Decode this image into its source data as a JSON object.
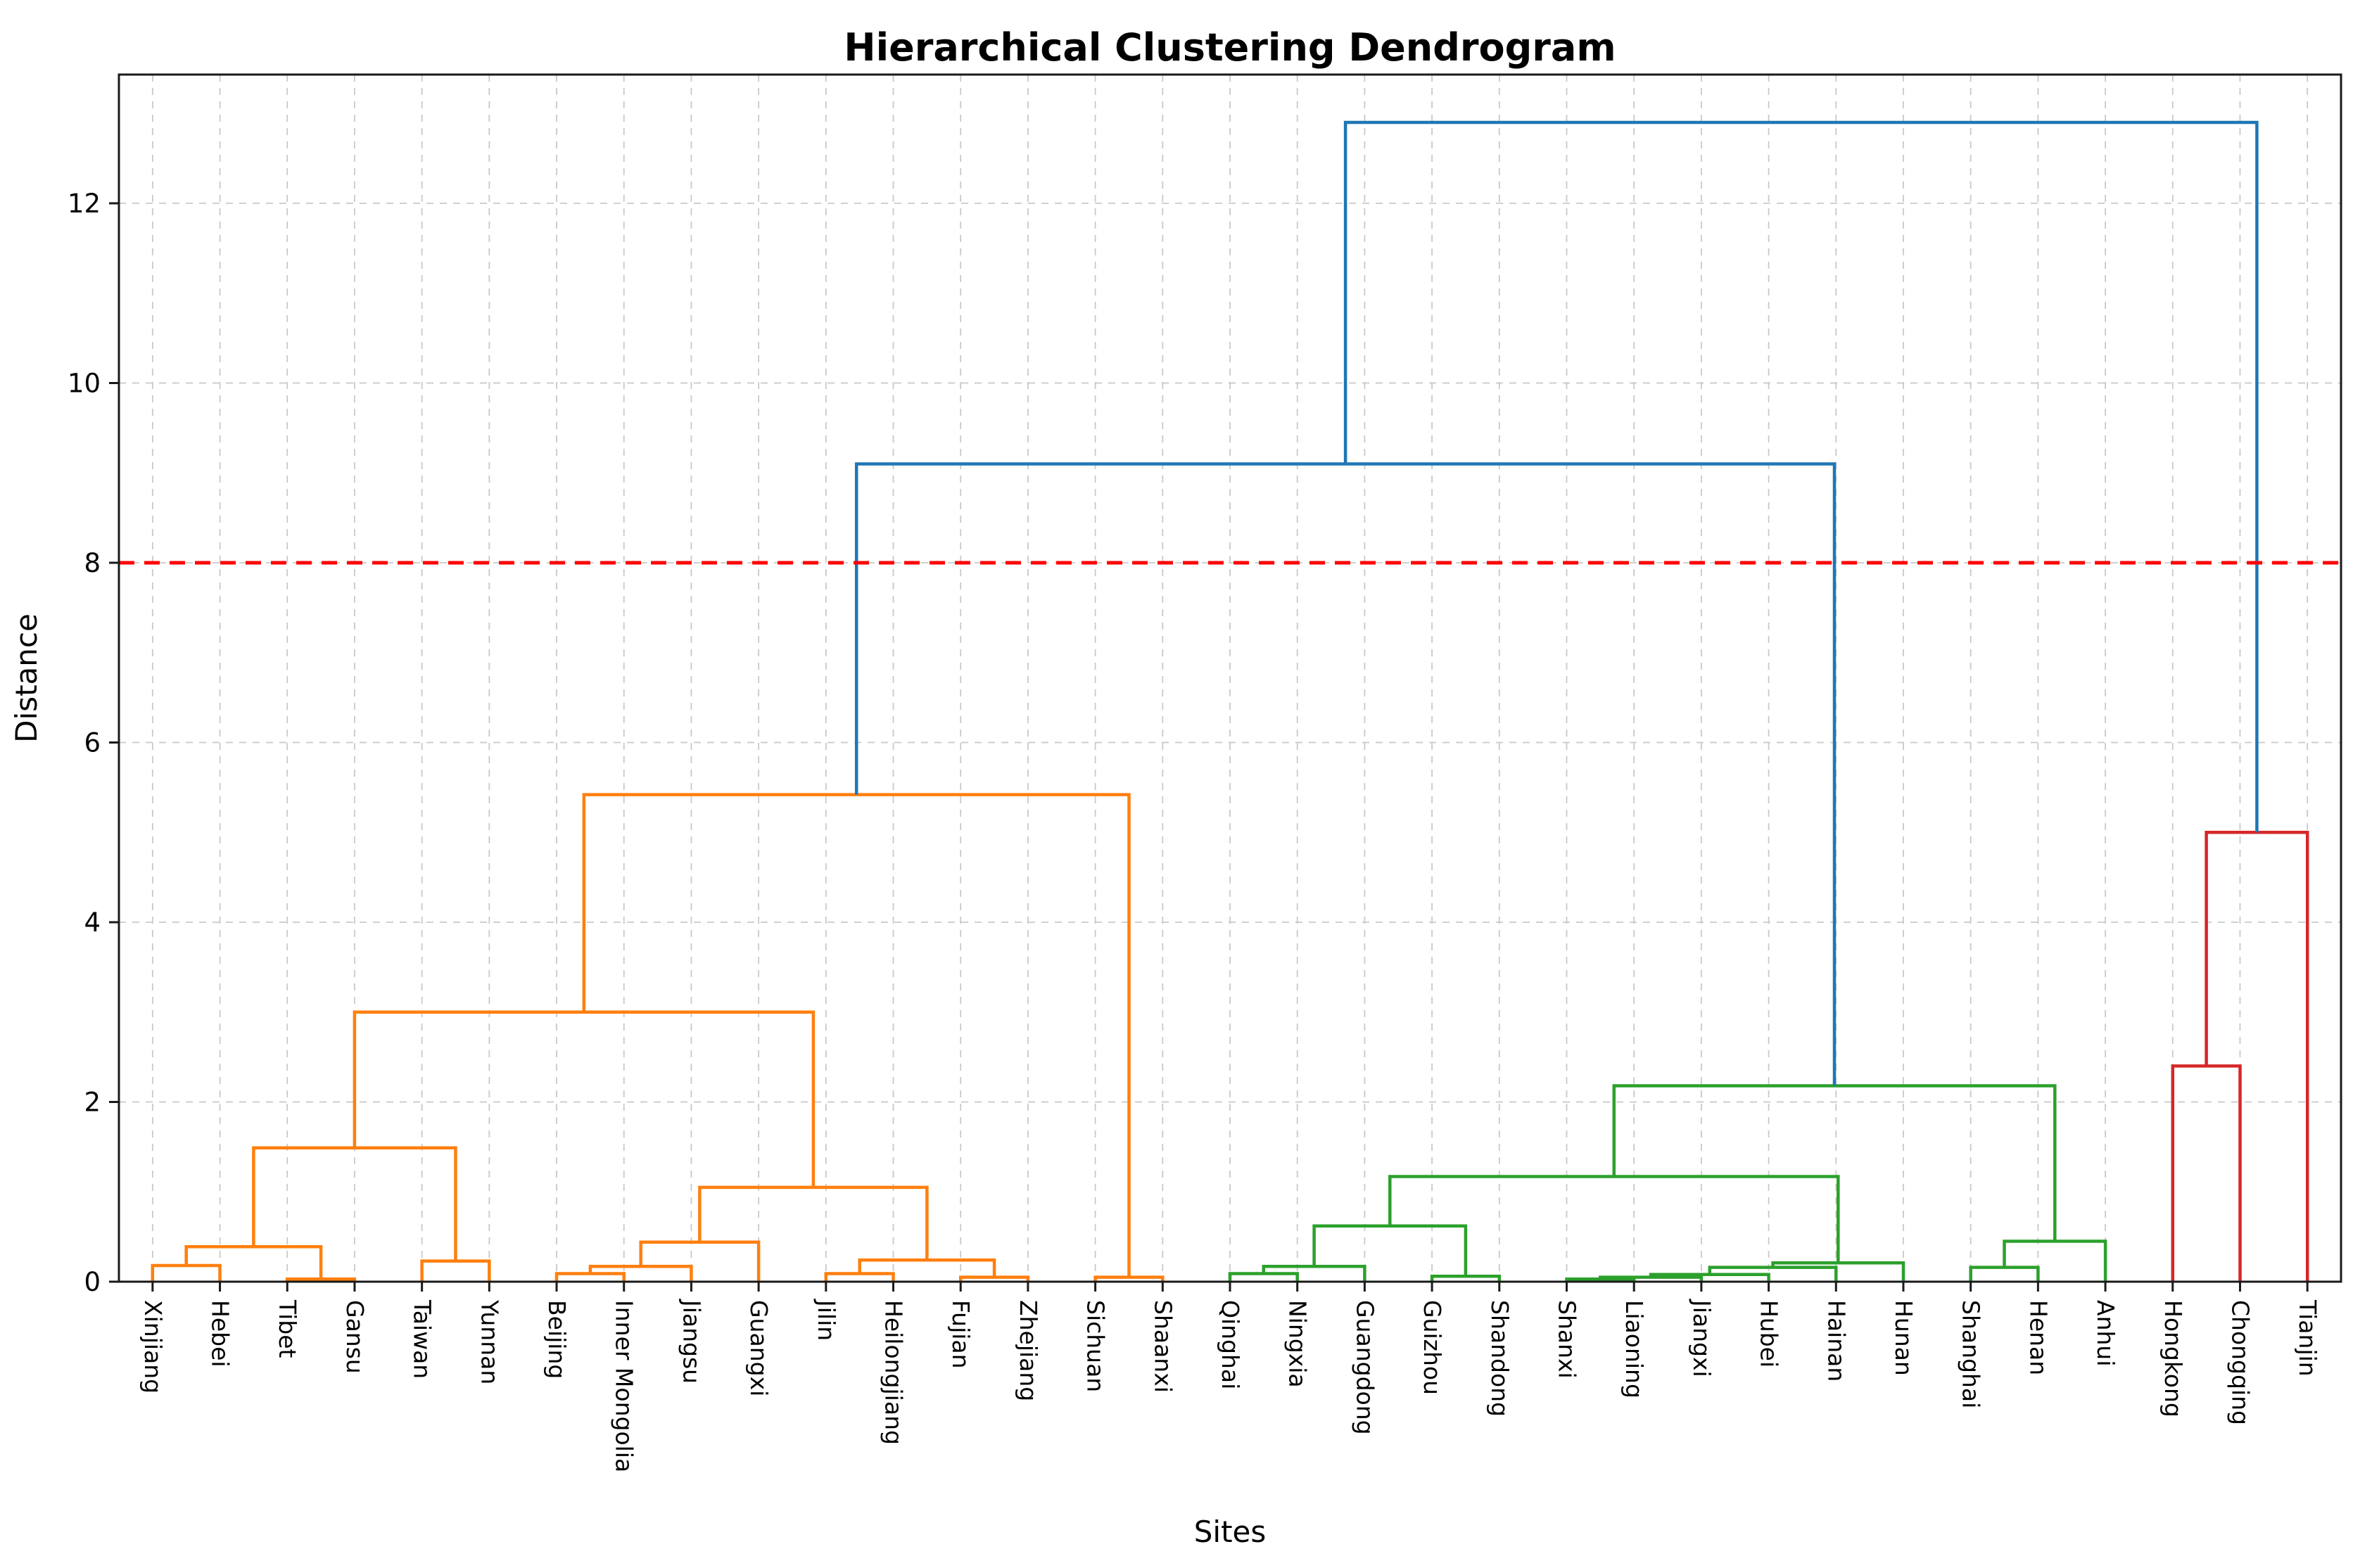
{
  "chart_data": {
    "type": "dendrogram",
    "title": "Hierarchical Clustering Dendrogram",
    "xlabel": "Sites",
    "ylabel": "Distance",
    "ylim": [
      0,
      13.43
    ],
    "yticks": [
      0,
      2,
      4,
      6,
      8,
      10,
      12
    ],
    "grid": true,
    "legend_position": "none",
    "threshold_line": {
      "value": 8,
      "color": "#ff0000",
      "style": "dashed"
    },
    "palette": {
      "C0": "#1f77b4",
      "C1": "#ff7f0e",
      "C2": "#2ca02c",
      "C3": "#d62728"
    },
    "spine_color": "#1a1a1a",
    "grid_color": "#c9c9c9",
    "leaves": [
      "Xinjiang",
      "Hebei",
      "Tibet",
      "Gansu",
      "Taiwan",
      "Yunnan",
      "Beijing",
      "Inner Mongolia",
      "Jiangsu",
      "Guangxi",
      "Jilin",
      "Heilongjiang",
      "Fujian",
      "Zhejiang",
      "Sichuan",
      "Shaanxi",
      "Qinghai",
      "Ningxia",
      "Guangdong",
      "Guizhou",
      "Shandong",
      "Shanxi",
      "Liaoning",
      "Jiangxi",
      "Hubei",
      "Hainan",
      "Hunan",
      "Shanghai",
      "Henan",
      "Anhui",
      "Hongkong",
      "Chongqing",
      "Tianjin"
    ],
    "merges": [
      {
        "a": "L0",
        "b": "L1",
        "h": 0.18,
        "c": "C1"
      },
      {
        "a": "L2",
        "b": "L3",
        "h": 0.03,
        "c": "C1"
      },
      {
        "a": "M0",
        "b": "M1",
        "h": 0.39,
        "c": "C1"
      },
      {
        "a": "L4",
        "b": "L5",
        "h": 0.23,
        "c": "C1"
      },
      {
        "a": "M2",
        "b": "M3",
        "h": 1.49,
        "c": "C1"
      },
      {
        "a": "L6",
        "b": "L7",
        "h": 0.09,
        "c": "C1"
      },
      {
        "a": "M5",
        "b": "L8",
        "h": 0.17,
        "c": "C1"
      },
      {
        "a": "M6",
        "b": "L9",
        "h": 0.44,
        "c": "C1"
      },
      {
        "a": "L10",
        "b": "L11",
        "h": 0.09,
        "c": "C1"
      },
      {
        "a": "L12",
        "b": "L13",
        "h": 0.05,
        "c": "C1"
      },
      {
        "a": "M8",
        "b": "M9",
        "h": 0.24,
        "c": "C1"
      },
      {
        "a": "M7",
        "b": "M10",
        "h": 1.05,
        "c": "C1"
      },
      {
        "a": "M4",
        "b": "M11",
        "h": 3.0,
        "c": "C1"
      },
      {
        "a": "L14",
        "b": "L15",
        "h": 0.05,
        "c": "C1"
      },
      {
        "a": "M12",
        "b": "M13",
        "h": 5.42,
        "c": "C1"
      },
      {
        "a": "L16",
        "b": "L17",
        "h": 0.09,
        "c": "C2"
      },
      {
        "a": "M15",
        "b": "L18",
        "h": 0.17,
        "c": "C2"
      },
      {
        "a": "L19",
        "b": "L20",
        "h": 0.06,
        "c": "C2"
      },
      {
        "a": "M16",
        "b": "M17",
        "h": 0.62,
        "c": "C2"
      },
      {
        "a": "L21",
        "b": "L22",
        "h": 0.03,
        "c": "C2"
      },
      {
        "a": "M19",
        "b": "L23",
        "h": 0.05,
        "c": "C2"
      },
      {
        "a": "M20",
        "b": "L24",
        "h": 0.08,
        "c": "C2"
      },
      {
        "a": "M21",
        "b": "L25",
        "h": 0.16,
        "c": "C2"
      },
      {
        "a": "M22",
        "b": "L26",
        "h": 0.21,
        "c": "C2"
      },
      {
        "a": "M18",
        "b": "M23",
        "h": 1.17,
        "c": "C2"
      },
      {
        "a": "L27",
        "b": "L28",
        "h": 0.16,
        "c": "C2"
      },
      {
        "a": "M25",
        "b": "L29",
        "h": 0.45,
        "c": "C2"
      },
      {
        "a": "M24",
        "b": "M26",
        "h": 2.18,
        "c": "C2"
      },
      {
        "a": "L30",
        "b": "L31",
        "h": 2.4,
        "c": "C3"
      },
      {
        "a": "M28",
        "b": "L32",
        "h": 5.0,
        "c": "C3"
      },
      {
        "a": "M14",
        "b": "M27",
        "h": 9.1,
        "c": "C0"
      },
      {
        "a": "M30",
        "b": "M29",
        "h": 12.9,
        "c": "C0"
      }
    ]
  }
}
